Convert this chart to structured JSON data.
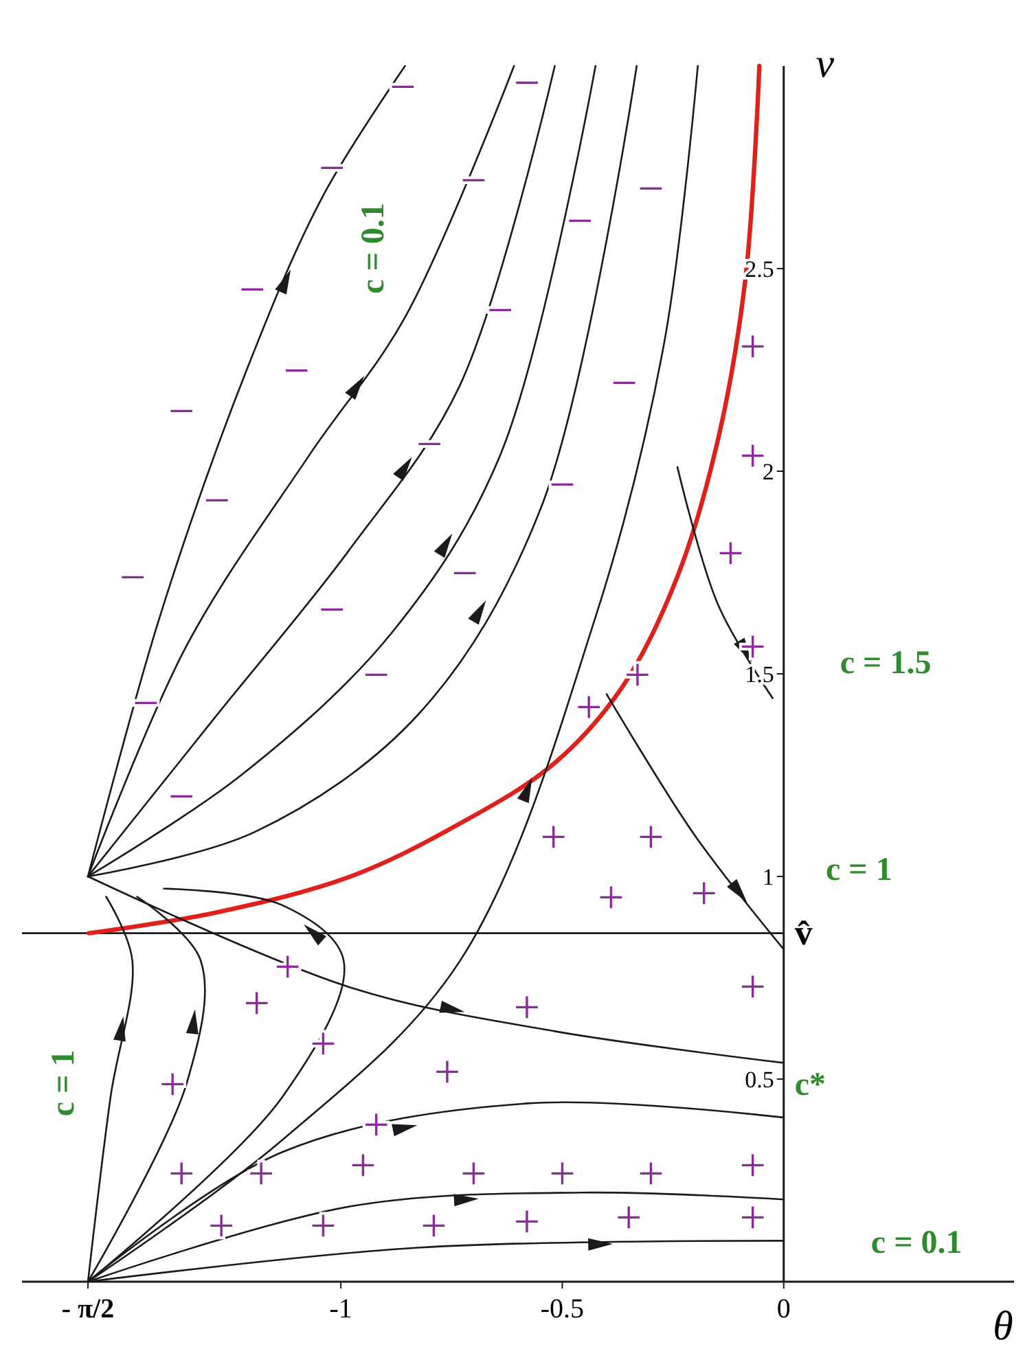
{
  "chart_data": {
    "type": "line",
    "xlabel": "θ",
    "ylabel": "v",
    "xlim": [
      -1.72,
      0.52
    ],
    "ylim": [
      0,
      3
    ],
    "xticks": [
      {
        "value": -1.571,
        "label": "- π/2"
      },
      -1,
      -0.5,
      0
    ],
    "yticks": [
      0.5,
      1,
      1.5,
      2,
      2.5
    ],
    "marker": "none",
    "line_style": "solid",
    "ref_lines": [
      {
        "axis": "y",
        "value": 0.86,
        "label": "v̂"
      }
    ],
    "series": [
      {
        "color": "#e0201b",
        "x": [
          -1.569,
          -1.286,
          -0.978,
          -0.732,
          -0.517,
          -0.363,
          -0.24,
          -0.148,
          -0.086,
          -0.055
        ],
        "values": [
          0.86,
          0.91,
          1.0,
          1.13,
          1.28,
          1.47,
          1.74,
          2.08,
          2.48,
          3.0
        ]
      },
      {
        "color": "#1a1a1a",
        "x": [
          -1.571,
          -1.409,
          -1.209,
          -1.04,
          -0.855
        ],
        "values": [
          1.0,
          1.64,
          2.26,
          2.68,
          3.0
        ]
      },
      {
        "color": "#1a1a1a",
        "x": [
          -1.571,
          -1.348,
          -1.071,
          -0.855,
          -0.609
        ],
        "values": [
          1.0,
          1.57,
          2.04,
          2.38,
          3.0
        ]
      },
      {
        "color": "#1a1a1a",
        "x": [
          -1.571,
          -1.286,
          -0.978,
          -0.732,
          -0.517
        ],
        "values": [
          1.0,
          1.39,
          1.81,
          2.21,
          3.0
        ]
      },
      {
        "color": "#1a1a1a",
        "x": [
          -1.571,
          -1.225,
          -0.886,
          -0.64,
          -0.425
        ],
        "values": [
          1.0,
          1.25,
          1.6,
          2.04,
          3.0
        ]
      },
      {
        "color": "#1a1a1a",
        "x": [
          -1.571,
          -1.194,
          -0.825,
          -0.548,
          -0.332
        ],
        "values": [
          1.0,
          1.11,
          1.4,
          1.91,
          3.0
        ]
      },
      {
        "color": "#1a1a1a",
        "x": [
          -1.571,
          -1.132,
          -0.732,
          -0.425,
          -0.271,
          -0.194
        ],
        "values": [
          0,
          0.35,
          0.79,
          1.64,
          2.31,
          3.0
        ]
      },
      {
        "color": "#1a1a1a",
        "x": [
          -1.571,
          -0.978,
          -0.517,
          0
        ],
        "values": [
          1.0,
          0.726,
          0.618,
          0.54
        ]
      },
      {
        "color": "#1a1a1a",
        "x": [
          -1.571,
          -1.132,
          -0.578,
          0
        ],
        "values": [
          0,
          0.32,
          0.44,
          0.405
        ]
      },
      {
        "color": "#1a1a1a",
        "x": [
          -1.571,
          -0.978,
          -0.455,
          0
        ],
        "values": [
          0,
          0.186,
          0.22,
          0.203
        ]
      },
      {
        "color": "#1a1a1a",
        "x": [
          -1.571,
          -0.827,
          0
        ],
        "values": [
          0,
          0.084,
          0.101
        ]
      },
      {
        "color": "#1a1a1a",
        "x": [
          -1.571,
          -1.52,
          -1.471,
          -1.53
        ],
        "values": [
          0,
          0.456,
          0.794,
          0.95
        ]
      },
      {
        "color": "#1a1a1a",
        "x": [
          -1.571,
          -1.348,
          -1.317,
          -1.46
        ],
        "values": [
          0,
          0.49,
          0.794,
          0.95
        ]
      },
      {
        "color": "#1a1a1a",
        "x": [
          -1.571,
          -1.132,
          -0.994,
          -1.132,
          -1.4
        ],
        "values": [
          0,
          0.456,
          0.794,
          0.929,
          0.97
        ]
      },
      {
        "color": "#1a1a1a",
        "x": [
          -0.24,
          -0.148,
          -0.025
        ],
        "values": [
          2.01,
          1.67,
          1.44
        ]
      },
      {
        "color": "#1a1a1a",
        "x": [
          -0.4,
          -0.2,
          0
        ],
        "values": [
          1.45,
          1.1,
          0.82
        ]
      }
    ],
    "annotations": [
      "c = 0.1",
      "c = 1.5",
      "c = 1",
      "c*",
      "c = 0.1",
      "c = 1",
      "−",
      "−",
      "−",
      "−",
      "−",
      "−",
      "−",
      "−",
      "−",
      "−",
      "−",
      "−",
      "−",
      "−",
      "−",
      "−",
      "−",
      "−",
      "−",
      "−",
      "+",
      "+",
      "+",
      "+",
      "+",
      "+",
      "+",
      "+",
      "+",
      "+",
      "+",
      "+",
      "+",
      "+",
      "+",
      "+",
      "+",
      "+",
      "+",
      "+",
      "+",
      "+",
      "+",
      "+",
      "+",
      "+",
      "+",
      "+",
      "+",
      "+",
      "+"
    ]
  }
}
